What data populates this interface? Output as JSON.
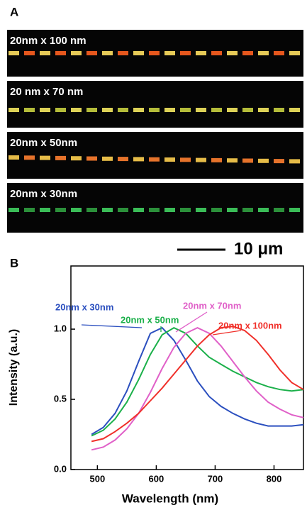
{
  "panel_a": {
    "label": "A",
    "images": [
      {
        "label": "20nm x 100 nm"
      },
      {
        "label": "20 nm x 70 nm"
      },
      {
        "label": "20nm x 50nm"
      },
      {
        "label": "20nm x 30nm"
      }
    ],
    "scale_bar": "10 μm"
  },
  "panel_b_label": "B",
  "chart_data": {
    "type": "line",
    "x_label": "Wavelength (nm)",
    "y_label": "Intensity (a.u.)",
    "x": [
      490,
      510,
      530,
      550,
      570,
      590,
      610,
      630,
      650,
      670,
      690,
      710,
      730,
      750,
      770,
      790,
      810,
      830,
      850
    ],
    "series": [
      {
        "name": "20nm x 30nm",
        "color": "#2b4fbf",
        "values": [
          0.25,
          0.3,
          0.4,
          0.56,
          0.77,
          0.97,
          1.01,
          0.92,
          0.78,
          0.63,
          0.52,
          0.45,
          0.4,
          0.36,
          0.33,
          0.31,
          0.31,
          0.31,
          0.32
        ]
      },
      {
        "name": "20nm x 50nm",
        "color": "#1bb04a",
        "values": [
          0.24,
          0.28,
          0.36,
          0.48,
          0.64,
          0.82,
          0.96,
          1.01,
          0.97,
          0.88,
          0.8,
          0.75,
          0.7,
          0.66,
          0.62,
          0.59,
          0.57,
          0.56,
          0.57
        ]
      },
      {
        "name": "20nm x 70nm",
        "color": "#e060c8",
        "values": [
          0.14,
          0.16,
          0.21,
          0.29,
          0.4,
          0.55,
          0.72,
          0.87,
          0.97,
          1.01,
          0.97,
          0.88,
          0.77,
          0.66,
          0.56,
          0.48,
          0.43,
          0.39,
          0.37
        ]
      },
      {
        "name": "20nm x 100nm",
        "color": "#f0302a",
        "values": [
          0.2,
          0.22,
          0.27,
          0.33,
          0.4,
          0.49,
          0.58,
          0.68,
          0.78,
          0.88,
          0.96,
          1.01,
          1.02,
          0.99,
          0.92,
          0.82,
          0.71,
          0.62,
          0.57
        ]
      }
    ],
    "xlim": [
      455,
      850
    ],
    "ylim": [
      0,
      1.45
    ],
    "xticks": [
      500,
      600,
      700,
      800
    ],
    "yticks": [
      {
        "value": 0,
        "label": "0.0"
      },
      {
        "value": 0.5,
        "label": "0.5"
      },
      {
        "value": 1,
        "label": "1.0"
      }
    ]
  }
}
